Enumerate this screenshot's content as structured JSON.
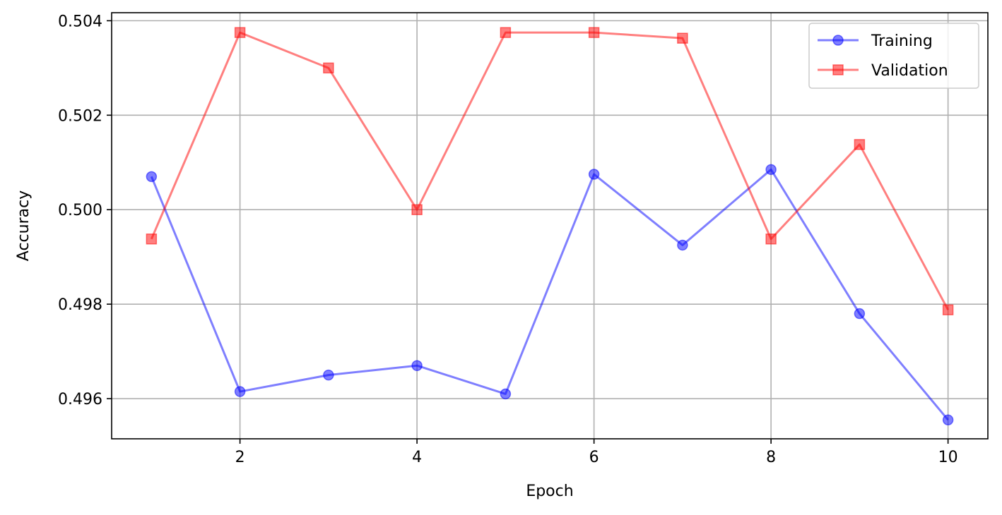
{
  "chart_data": {
    "type": "line",
    "title": "",
    "xlabel": "Epoch",
    "ylabel": "Accuracy",
    "xlim": [
      0.55,
      10.45
    ],
    "ylim": [
      0.49515,
      0.50417
    ],
    "xticks": [
      2,
      4,
      6,
      8,
      10
    ],
    "xtick_labels": [
      "2",
      "4",
      "6",
      "8",
      "10"
    ],
    "yticks": [
      0.496,
      0.498,
      0.5,
      0.502,
      0.504
    ],
    "ytick_labels": [
      "0.496",
      "0.498",
      "0.500",
      "0.502",
      "0.504"
    ],
    "grid": true,
    "legend_position": "top-right",
    "x": [
      1,
      2,
      3,
      4,
      5,
      6,
      7,
      8,
      9,
      10
    ],
    "series": [
      {
        "name": "Training",
        "color": "#0000ff",
        "marker": "circle",
        "values": [
          0.5007,
          0.49615,
          0.4965,
          0.4967,
          0.4961,
          0.50075,
          0.49925,
          0.50085,
          0.4978,
          0.49555
        ]
      },
      {
        "name": "Validation",
        "color": "#ff0000",
        "marker": "square",
        "values": [
          0.49938,
          0.50375,
          0.503,
          0.5,
          0.50375,
          0.50375,
          0.50363,
          0.49938,
          0.50138,
          0.49788
        ]
      }
    ]
  }
}
